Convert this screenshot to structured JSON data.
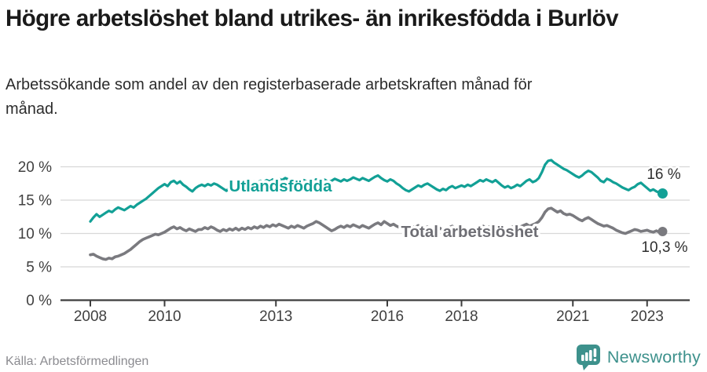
{
  "header": {
    "title": "Högre arbetslöshet bland utrikes- än inrikesfödda i Burlöv",
    "subtitle": "Arbetssökande som andel av den registerbaserade arbetskraften månad för månad."
  },
  "footer": {
    "source": "Källa: Arbetsförmedlingen",
    "brand": "Newsworthy",
    "brand_icon": "newsworthy-chart-bubble-icon"
  },
  "colors": {
    "series_foreign_born": "#12a096",
    "series_total": "#7a7a7f",
    "series_total_label": "#6e6e74",
    "axis": "#3d3d3d",
    "grid": "#d8d8d8",
    "tick_label": "#404040",
    "annotation": "#2f2f2f",
    "source_text": "#8b8b90",
    "brand_teal": "#3d918c"
  },
  "chart_data": {
    "type": "line",
    "unit": "%",
    "frequency": "monthly",
    "x_start": {
      "year": 2008,
      "month": 1
    },
    "x_end": {
      "year": 2023,
      "month": 6
    },
    "ylim": [
      0,
      22
    ],
    "grid": true,
    "yticks": [
      {
        "value": 0,
        "label": "0 %"
      },
      {
        "value": 5,
        "label": "5 %"
      },
      {
        "value": 10,
        "label": "10 %"
      },
      {
        "value": 15,
        "label": "15 %"
      },
      {
        "value": 20,
        "label": "20 %"
      }
    ],
    "xticks": [
      {
        "year": 2008,
        "label": "2008"
      },
      {
        "year": 2010,
        "label": "2010"
      },
      {
        "year": 2013,
        "label": "2013"
      },
      {
        "year": 2016,
        "label": "2016"
      },
      {
        "year": 2018,
        "label": "2018"
      },
      {
        "year": 2021,
        "label": "2021"
      },
      {
        "year": 2023,
        "label": "2023"
      }
    ],
    "series": [
      {
        "name": "Utlandsfödda",
        "color": "#12a096",
        "label_color": "#12a096",
        "end_label": "16 %",
        "end_value": 16.0,
        "values": [
          11.8,
          12.4,
          12.9,
          12.5,
          12.8,
          13.1,
          13.4,
          13.2,
          13.6,
          13.9,
          13.7,
          13.5,
          13.8,
          14.1,
          13.9,
          14.3,
          14.6,
          14.9,
          15.2,
          15.6,
          16.0,
          16.4,
          16.8,
          17.1,
          17.4,
          17.1,
          17.7,
          17.9,
          17.5,
          17.8,
          17.3,
          17.0,
          16.6,
          16.3,
          16.8,
          17.1,
          17.3,
          17.1,
          17.4,
          17.2,
          17.5,
          17.3,
          17.0,
          16.7,
          16.4,
          16.9,
          17.2,
          17.4,
          17.3,
          17.6,
          17.4,
          17.7,
          17.5,
          17.8,
          17.6,
          17.9,
          17.7,
          18.0,
          17.8,
          18.1,
          17.9,
          18.2,
          18.0,
          18.3,
          18.1,
          17.8,
          17.6,
          17.9,
          17.7,
          18.0,
          17.8,
          17.6,
          17.8,
          18.1,
          17.9,
          18.2,
          18.0,
          17.7,
          17.9,
          18.2,
          18.0,
          17.8,
          18.1,
          17.9,
          18.1,
          18.4,
          18.2,
          18.0,
          18.3,
          18.1,
          17.9,
          18.2,
          18.5,
          18.7,
          18.3,
          18.0,
          17.8,
          18.1,
          17.9,
          17.5,
          17.2,
          16.8,
          16.5,
          16.3,
          16.6,
          16.9,
          17.2,
          17.0,
          17.3,
          17.5,
          17.2,
          16.9,
          16.6,
          16.4,
          16.7,
          16.5,
          16.9,
          17.1,
          16.8,
          17.0,
          17.2,
          17.0,
          17.3,
          17.1,
          17.4,
          17.7,
          18.0,
          17.8,
          18.1,
          17.9,
          17.7,
          18.0,
          17.6,
          17.2,
          16.9,
          17.1,
          16.8,
          17.0,
          17.3,
          17.1,
          17.5,
          17.9,
          18.1,
          17.7,
          17.9,
          18.3,
          19.2,
          20.3,
          20.9,
          21.0,
          20.6,
          20.3,
          20.0,
          19.7,
          19.5,
          19.2,
          18.9,
          18.6,
          18.4,
          18.7,
          19.1,
          19.4,
          19.2,
          18.8,
          18.4,
          17.9,
          17.7,
          18.2,
          18.0,
          17.7,
          17.5,
          17.2,
          16.9,
          16.7,
          16.5,
          16.8,
          17.0,
          17.4,
          17.6,
          17.2,
          16.8,
          16.4,
          16.6,
          16.3,
          16.1,
          16.0
        ]
      },
      {
        "name": "Total arbetslöshet",
        "color": "#7a7a7f",
        "label_color": "#6e6e74",
        "end_label": "10,3 %",
        "end_value": 10.3,
        "values": [
          6.8,
          6.9,
          6.6,
          6.4,
          6.2,
          6.1,
          6.3,
          6.2,
          6.5,
          6.6,
          6.8,
          7.0,
          7.3,
          7.6,
          8.0,
          8.4,
          8.8,
          9.1,
          9.3,
          9.5,
          9.7,
          9.9,
          9.8,
          10.0,
          10.2,
          10.5,
          10.8,
          11.0,
          10.7,
          10.9,
          10.6,
          10.4,
          10.7,
          10.5,
          10.3,
          10.6,
          10.6,
          10.9,
          10.7,
          11.0,
          10.8,
          10.5,
          10.3,
          10.6,
          10.4,
          10.7,
          10.5,
          10.8,
          10.5,
          10.8,
          10.6,
          10.9,
          10.7,
          11.0,
          10.8,
          11.1,
          10.9,
          11.2,
          11.0,
          11.3,
          11.1,
          11.4,
          11.2,
          11.0,
          10.8,
          11.1,
          10.9,
          11.2,
          11.0,
          10.8,
          11.1,
          11.3,
          11.5,
          11.8,
          11.6,
          11.3,
          11.0,
          10.7,
          10.4,
          10.6,
          10.9,
          11.1,
          10.9,
          11.2,
          11.0,
          11.3,
          11.1,
          10.9,
          11.2,
          11.0,
          10.8,
          11.1,
          11.4,
          11.6,
          11.3,
          11.8,
          11.5,
          11.2,
          11.4,
          11.1,
          10.9,
          11.2,
          11.0,
          10.8,
          11.1,
          10.9,
          11.2,
          11.0,
          10.8,
          11.0,
          10.7,
          10.9,
          10.6,
          10.8,
          10.5,
          10.7,
          10.9,
          11.1,
          10.8,
          11.0,
          10.7,
          10.9,
          10.6,
          10.8,
          10.5,
          10.7,
          10.9,
          11.1,
          10.8,
          11.0,
          10.7,
          10.9,
          10.6,
          10.8,
          10.5,
          10.7,
          10.9,
          11.1,
          10.8,
          11.0,
          11.2,
          11.4,
          11.1,
          11.3,
          11.5,
          11.8,
          12.4,
          13.2,
          13.7,
          13.8,
          13.5,
          13.2,
          13.4,
          13.0,
          12.8,
          12.9,
          12.7,
          12.4,
          12.1,
          11.9,
          12.2,
          12.4,
          12.1,
          11.8,
          11.5,
          11.3,
          11.1,
          11.2,
          11.0,
          10.8,
          10.5,
          10.3,
          10.1,
          10.0,
          10.2,
          10.4,
          10.6,
          10.5,
          10.3,
          10.4,
          10.5,
          10.3,
          10.2,
          10.4,
          10.2,
          10.3
        ]
      }
    ]
  }
}
